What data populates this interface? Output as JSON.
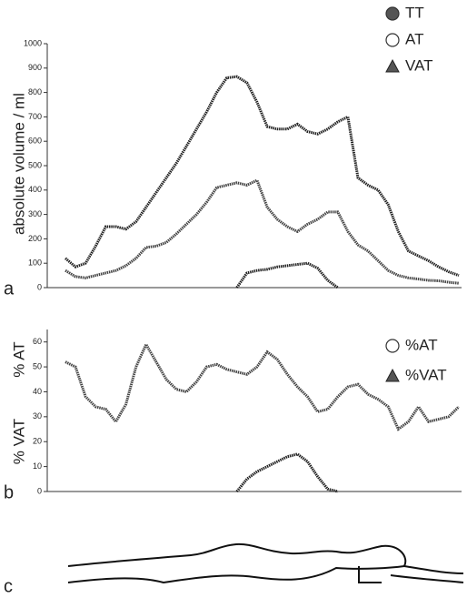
{
  "chart_data": [
    {
      "type": "line",
      "panel_label": "a",
      "ylabel": "absolute volume / ml",
      "ylim": [
        0,
        1000
      ],
      "yticks": [
        0,
        100,
        200,
        300,
        400,
        500,
        600,
        700,
        800,
        900,
        1000
      ],
      "series": [
        {
          "name": "TT",
          "color": "#222222",
          "marker": "circle-filled",
          "values": [
            120,
            85,
            100,
            170,
            250,
            250,
            240,
            270,
            330,
            390,
            450,
            510,
            580,
            650,
            720,
            800,
            860,
            865,
            840,
            760,
            660,
            650,
            650,
            670,
            640,
            630,
            650,
            680,
            700,
            450,
            420,
            400,
            340,
            230,
            150,
            130,
            110,
            85,
            65,
            50
          ]
        },
        {
          "name": "AT",
          "color": "#444444",
          "marker": "circle-open",
          "values": [
            70,
            45,
            40,
            50,
            60,
            70,
            90,
            120,
            165,
            170,
            185,
            220,
            260,
            300,
            350,
            410,
            420,
            430,
            420,
            440,
            330,
            280,
            250,
            230,
            260,
            280,
            310,
            310,
            230,
            175,
            150,
            110,
            70,
            50,
            40,
            35,
            30,
            28,
            22,
            18
          ]
        },
        {
          "name": "VAT",
          "color": "#222222",
          "marker": "triangle",
          "values": [
            null,
            null,
            null,
            null,
            null,
            null,
            null,
            null,
            null,
            null,
            null,
            null,
            null,
            null,
            null,
            null,
            null,
            0,
            60,
            70,
            75,
            85,
            90,
            95,
            100,
            80,
            30,
            0,
            null,
            null,
            null,
            null,
            null,
            null,
            null,
            null,
            null,
            null,
            null,
            null
          ]
        }
      ]
    },
    {
      "type": "line",
      "panel_label": "b",
      "ylabel": [
        "% AT",
        "% VAT"
      ],
      "ylim": [
        0,
        65
      ],
      "yticks": [
        0,
        10,
        20,
        30,
        40,
        50,
        60
      ],
      "series": [
        {
          "name": "%AT",
          "color": "#444444",
          "marker": "circle-open",
          "values": [
            52,
            50,
            38,
            34,
            33,
            28,
            35,
            50,
            59,
            52,
            45,
            41,
            40,
            44,
            50,
            51,
            49,
            48,
            47,
            50,
            56,
            53,
            47,
            42,
            38,
            32,
            33,
            38,
            42,
            43,
            39,
            37,
            34,
            25,
            28,
            34,
            28,
            29,
            30,
            34
          ]
        },
        {
          "name": "%VAT",
          "color": "#222222",
          "marker": "triangle",
          "values": [
            null,
            null,
            null,
            null,
            null,
            null,
            null,
            null,
            null,
            null,
            null,
            null,
            null,
            null,
            null,
            null,
            null,
            0,
            5,
            8,
            10,
            12,
            14,
            15,
            12,
            6,
            1,
            0,
            null,
            null,
            null,
            null,
            null,
            null,
            null,
            null,
            null,
            null,
            null,
            null
          ]
        }
      ]
    }
  ],
  "panel_c": {
    "label": "c"
  }
}
